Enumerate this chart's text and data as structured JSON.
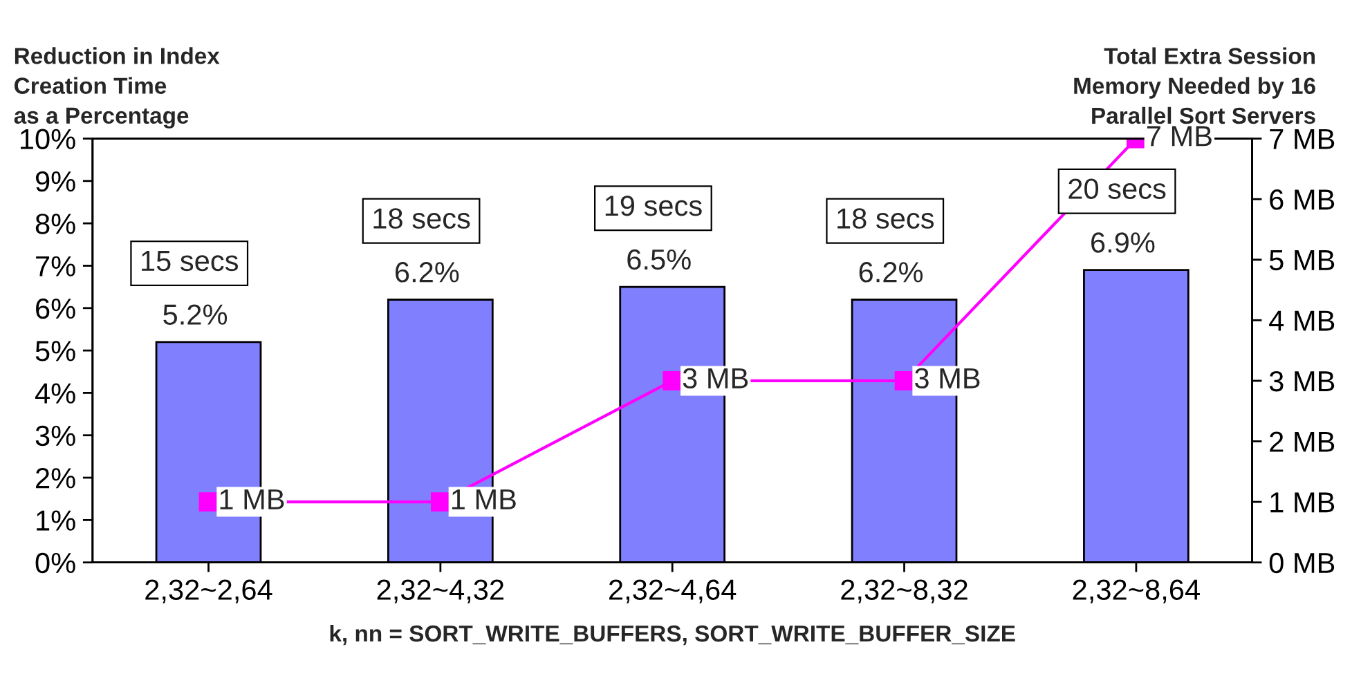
{
  "chart_data": {
    "type": "bar",
    "ylabel": "Reduction in Index\nCreation Time\nas a Percentage",
    "y2label": "Total Extra Session\nMemory Needed by 16\nParallel Sort Servers",
    "xlabel": "k, nn = SORT_WRITE_BUFFERS, SORT_WRITE_BUFFER_SIZE",
    "categories": [
      "2,32~2,64",
      "2,32~4,32",
      "2,32~4,64",
      "2,32~8,32",
      "2,32~8,64"
    ],
    "series": [
      {
        "color": "#8080ff",
        "values": [
          5.2,
          6.2,
          6.5,
          6.2,
          6.9
        ],
        "value_labels": [
          "5.2%",
          "6.2%",
          "6.5%",
          "6.2%",
          "6.9%"
        ]
      },
      {
        "type": "line",
        "axis": "y2",
        "color": "#ff00ff",
        "marker": "square",
        "line_style": "solid",
        "values": [
          1,
          1,
          3,
          3,
          7
        ],
        "value_labels": [
          "1 MB",
          "1 MB",
          "3 MB",
          "3 MB",
          "7 MB"
        ]
      }
    ],
    "annotations": [
      {
        "text": "15 secs",
        "x": "2,32~2,64",
        "y": 5.2
      },
      {
        "text": "18 secs",
        "x": "2,32~4,32",
        "y": 6.2
      },
      {
        "text": "19 secs",
        "x": "2,32~4,64",
        "y": 6.5
      },
      {
        "text": "18 secs",
        "x": "2,32~8,32",
        "y": 6.2
      },
      {
        "text": "20 secs",
        "x": "2,32~8,64",
        "y": 6.9
      }
    ],
    "ylim": [
      0,
      10
    ],
    "yticks": [
      {
        "value": 0,
        "label": "0%"
      },
      {
        "value": 1,
        "label": "1%"
      },
      {
        "value": 2,
        "label": "2%"
      },
      {
        "value": 3,
        "label": "3%"
      },
      {
        "value": 4,
        "label": "4%"
      },
      {
        "value": 5,
        "label": "5%"
      },
      {
        "value": 6,
        "label": "6%"
      },
      {
        "value": 7,
        "label": "7%"
      },
      {
        "value": 8,
        "label": "8%"
      },
      {
        "value": 9,
        "label": "9%"
      },
      {
        "value": 10,
        "label": "10%"
      }
    ],
    "y2lim": [
      0,
      7
    ],
    "y2ticks": [
      {
        "value": 0,
        "label": "0 MB"
      },
      {
        "value": 1,
        "label": "1 MB"
      },
      {
        "value": 2,
        "label": "2 MB"
      },
      {
        "value": 3,
        "label": "3 MB"
      },
      {
        "value": 4,
        "label": "4 MB"
      },
      {
        "value": 5,
        "label": "5 MB"
      },
      {
        "value": 6,
        "label": "6 MB"
      },
      {
        "value": 7,
        "label": "7 MB"
      }
    ],
    "grid": false,
    "legend": false
  }
}
